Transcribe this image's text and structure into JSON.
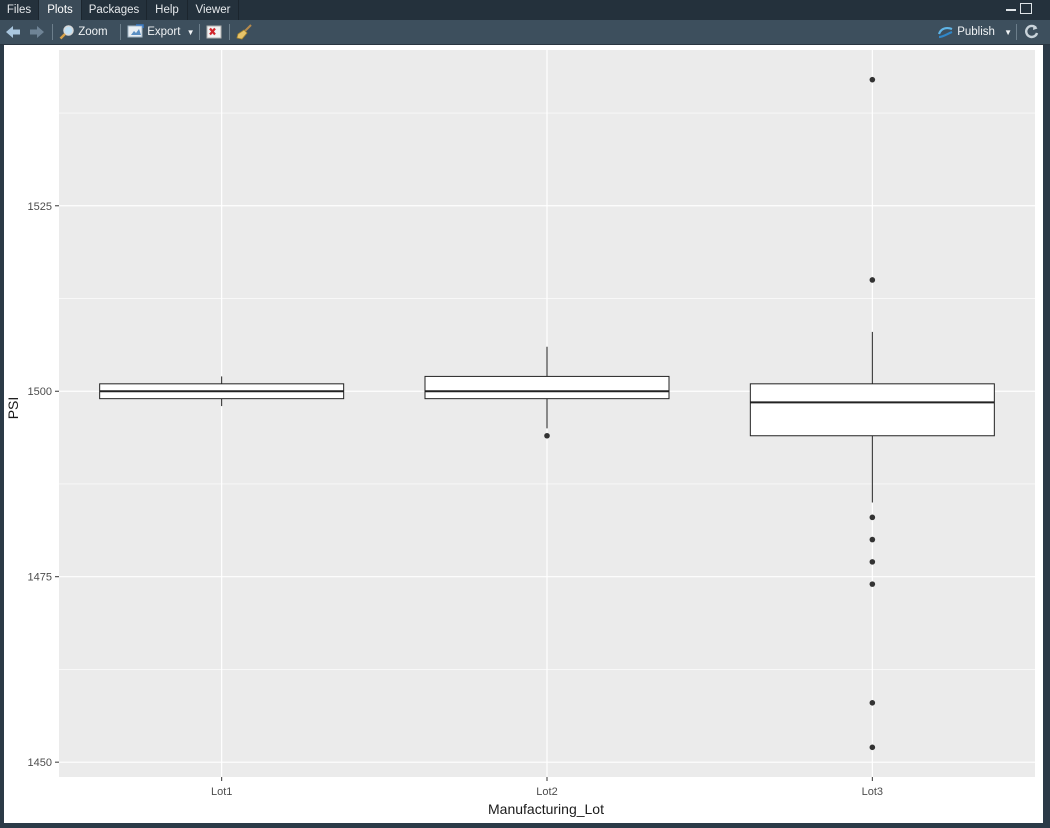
{
  "tabs": [
    {
      "label": "Files",
      "active": false
    },
    {
      "label": "Plots",
      "active": true
    },
    {
      "label": "Packages",
      "active": false
    },
    {
      "label": "Help",
      "active": false
    },
    {
      "label": "Viewer",
      "active": false
    }
  ],
  "toolbar": {
    "zoom_label": "Zoom",
    "export_label": "Export",
    "publish_label": "Publish"
  },
  "icons": {
    "back": "arrow-left-icon",
    "forward": "arrow-right-icon",
    "zoom": "magnifier-icon",
    "export": "export-icon",
    "remove": "remove-plot-icon",
    "clear": "broom-icon",
    "publish": "publish-icon",
    "refresh": "refresh-icon"
  },
  "colors": {
    "panel_bg": "#ebebeb",
    "grid": "#ffffff",
    "box_stroke": "#222222",
    "outlier": "#333333"
  },
  "chart_data": {
    "type": "boxplot",
    "xlabel": "Manufacturing_Lot",
    "ylabel": "PSI",
    "categories": [
      "Lot1",
      "Lot2",
      "Lot3"
    ],
    "y_ticks": [
      1450,
      1475,
      1500,
      1525
    ],
    "ylim": [
      1448,
      1546
    ],
    "boxes": [
      {
        "name": "Lot1",
        "whisker_low": 1498,
        "q1": 1499,
        "median": 1500,
        "q3": 1501,
        "whisker_high": 1502,
        "outliers": []
      },
      {
        "name": "Lot2",
        "whisker_low": 1495,
        "q1": 1499,
        "median": 1500,
        "q3": 1502,
        "whisker_high": 1506,
        "outliers": [
          1494
        ]
      },
      {
        "name": "Lot3",
        "whisker_low": 1485,
        "q1": 1494,
        "median": 1498.5,
        "q3": 1501,
        "whisker_high": 1508,
        "outliers": [
          1542,
          1515,
          1483,
          1480,
          1477,
          1474,
          1458,
          1452
        ]
      }
    ],
    "grid": true,
    "legend": "none"
  }
}
